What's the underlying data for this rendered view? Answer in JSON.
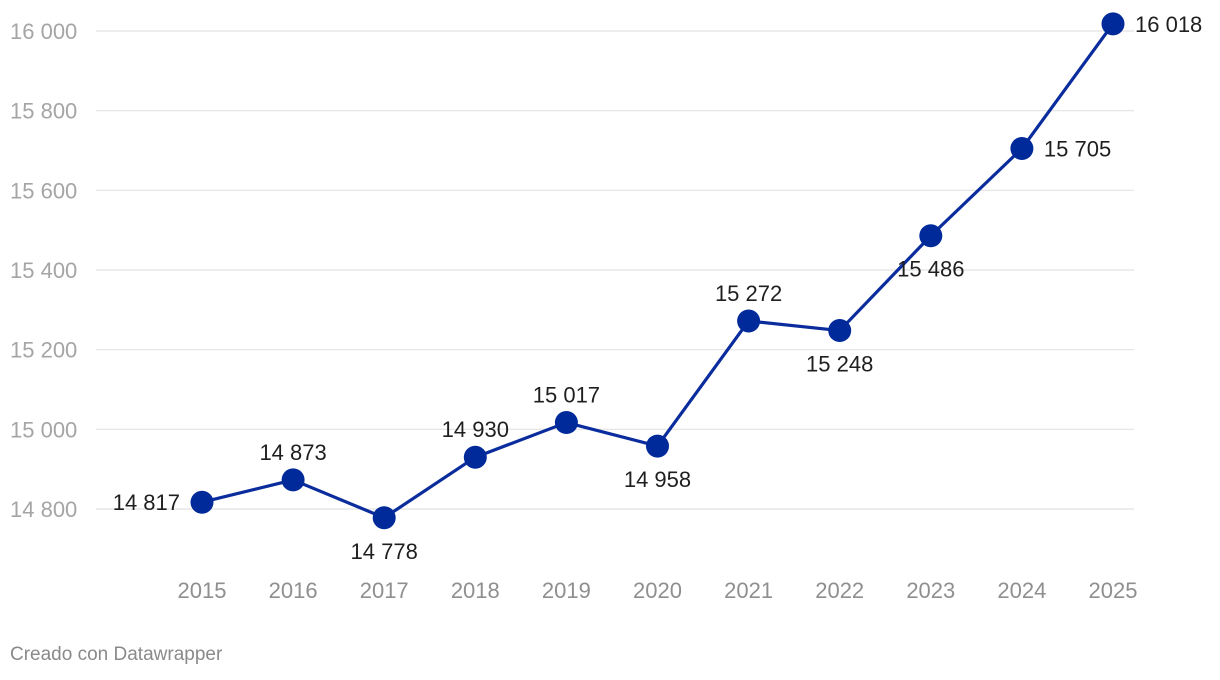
{
  "chart_data": {
    "type": "line",
    "categories": [
      "2015",
      "2016",
      "2017",
      "2018",
      "2019",
      "2020",
      "2021",
      "2022",
      "2023",
      "2024",
      "2025"
    ],
    "series": [
      {
        "values": [
          14817,
          14873,
          14778,
          14930,
          15017,
          14958,
          15272,
          15248,
          15486,
          15705,
          16018
        ]
      }
    ],
    "data_labels": [
      "14 817",
      "14 873",
      "14 778",
      "14 930",
      "15 017",
      "14 958",
      "15 272",
      "15 248",
      "15 486",
      "15 705",
      "16 018"
    ],
    "ylim": [
      14800,
      16000
    ],
    "yticks": [
      14800,
      15000,
      15200,
      15400,
      15600,
      15800,
      16000
    ],
    "ytick_labels": [
      "14 800",
      "15 000",
      "15 200",
      "15 400",
      "15 600",
      "15 800",
      "16 000"
    ],
    "grid": true,
    "line_color": "#0a2c9c",
    "marker_color": "#00299a"
  },
  "footer": {
    "credit": "Creado con Datawrapper"
  }
}
